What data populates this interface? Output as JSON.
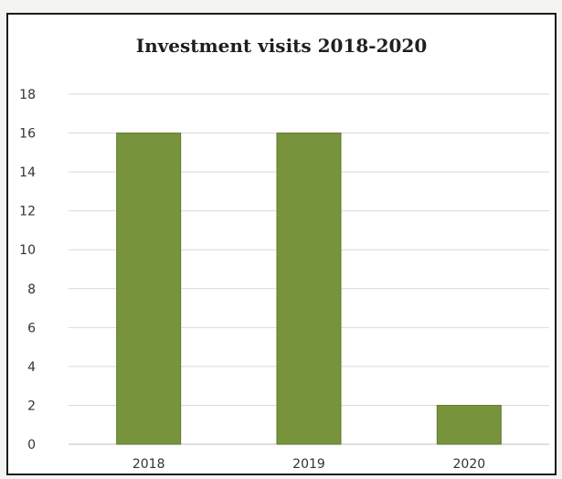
{
  "chart_data": {
    "type": "bar",
    "title": "Investment visits 2018-2020",
    "categories": [
      "2018",
      "2019",
      "2020"
    ],
    "values": [
      16,
      16,
      2
    ],
    "ylim": [
      0,
      18
    ],
    "yticks": [
      0,
      2,
      4,
      6,
      8,
      10,
      12,
      14,
      16,
      18
    ],
    "grid": true,
    "legend": "none",
    "colors": {
      "bar": "#77933c",
      "bar_edge": "#5f7a2c",
      "gridline": "#d9d9d9",
      "axis": "#bfbfbf"
    }
  }
}
